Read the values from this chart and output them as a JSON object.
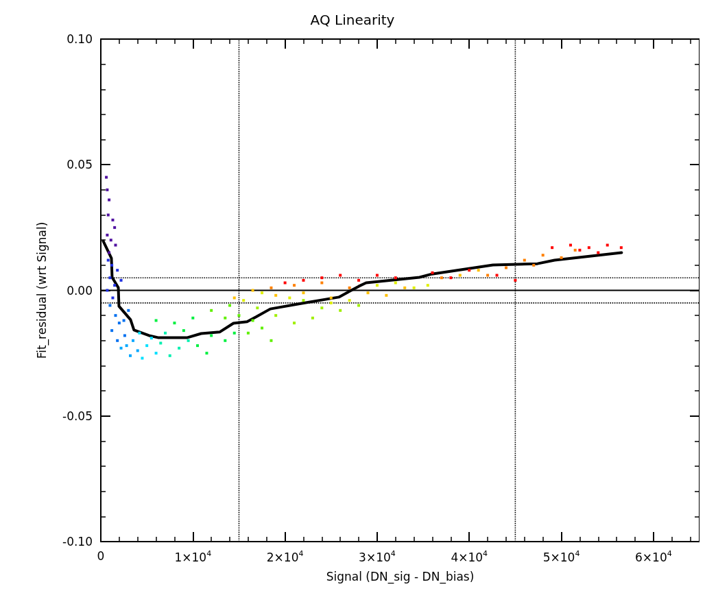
{
  "chart_data": {
    "type": "scatter",
    "title": "AQ Linearity",
    "xlabel": "Signal (DN_sig - DN_bias)",
    "ylabel": "Fit_residual (wrt Signal)",
    "xlim": [
      0,
      65000
    ],
    "xticks": [
      0,
      {
        "value": 10000,
        "label": "1×10$^{4}$"
      },
      {
        "value": 20000,
        "label": "2×10$^{4}$"
      },
      {
        "value": 30000,
        "label": "3×10$^{4}$"
      },
      {
        "value": 40000,
        "label": "4×10$^{4}$"
      },
      {
        "value": 50000,
        "label": "5×10$^{4}$"
      },
      {
        "value": 60000,
        "label": "6×10$^{4}$"
      }
    ],
    "ylim": [
      -0.1,
      0.1
    ],
    "yticks": [
      {
        "value": -0.1,
        "label": "-0.10"
      },
      {
        "value": -0.05,
        "label": "-0.05"
      },
      {
        "value": 0,
        "label": "0.00"
      },
      {
        "value": 0.05,
        "label": "0.05"
      },
      {
        "value": 0.1,
        "label": "0.10"
      }
    ],
    "grid": false,
    "marker": "square",
    "ref_lines": [
      {
        "axis": "y",
        "value": 0,
        "color": "#000000",
        "line_style": "solid"
      },
      {
        "axis": "y",
        "value": 0.005,
        "color": "#000000",
        "line_style": "dotted"
      },
      {
        "axis": "y",
        "value": -0.005,
        "color": "#000000",
        "line_style": "dotted"
      },
      {
        "axis": "x",
        "value": 15000,
        "color": "#000000",
        "line_style": "dotted"
      },
      {
        "axis": "x",
        "value": 45000,
        "color": "#000000",
        "line_style": "dotted"
      }
    ],
    "series": [
      {
        "type": "scatter",
        "color": "#5010a0",
        "x": [
          600,
          700,
          900,
          800,
          1300,
          1500,
          700,
          1100,
          1600,
          900
        ],
        "values": [
          0.045,
          0.04,
          0.036,
          0.03,
          0.028,
          0.025,
          0.022,
          0.02,
          0.018,
          0.015
        ]
      },
      {
        "type": "scatter",
        "color": "#2030e0",
        "x": [
          800,
          1200,
          1800,
          1000,
          2200,
          1500,
          700,
          1300
        ],
        "values": [
          0.012,
          0.01,
          0.008,
          0.005,
          0.004,
          0.002,
          0.0,
          -0.003
        ]
      },
      {
        "type": "scatter",
        "color": "#0070f0",
        "x": [
          1000,
          1600,
          2000,
          1200,
          2500,
          3000,
          1800,
          2600
        ],
        "values": [
          -0.006,
          -0.01,
          -0.013,
          -0.016,
          -0.012,
          -0.008,
          -0.02,
          -0.018
        ]
      },
      {
        "type": "scatter",
        "color": "#00a8ff",
        "x": [
          2800,
          3500,
          3200,
          4000,
          2200
        ],
        "values": [
          -0.022,
          -0.02,
          -0.026,
          -0.024,
          -0.023
        ]
      },
      {
        "type": "scatter",
        "color": "#00e0ff",
        "x": [
          4500,
          5000,
          6000,
          5500,
          4200
        ],
        "values": [
          -0.027,
          -0.022,
          -0.025,
          -0.019,
          -0.017
        ]
      },
      {
        "type": "scatter",
        "color": "#00f0b0",
        "x": [
          6500,
          7500,
          7000,
          8500,
          9500
        ],
        "values": [
          -0.021,
          -0.026,
          -0.017,
          -0.023,
          -0.02
        ]
      },
      {
        "type": "scatter",
        "color": "#00f040",
        "x": [
          6000,
          8000,
          9000,
          10500,
          11500,
          12000,
          10000,
          13500,
          14500
        ],
        "values": [
          -0.012,
          -0.013,
          -0.016,
          -0.022,
          -0.025,
          -0.018,
          -0.011,
          -0.02,
          -0.017
        ]
      },
      {
        "type": "scatter",
        "color": "#60f000",
        "x": [
          12000,
          13500,
          15000,
          16500,
          17500,
          18500,
          16000,
          14000
        ],
        "values": [
          -0.008,
          -0.011,
          -0.01,
          -0.012,
          -0.015,
          -0.02,
          -0.017,
          -0.006
        ]
      },
      {
        "type": "scatter",
        "color": "#a0f000",
        "x": [
          17000,
          19000,
          21000,
          23000,
          24000,
          26000,
          28000,
          22000
        ],
        "values": [
          -0.007,
          -0.01,
          -0.013,
          -0.011,
          -0.007,
          -0.008,
          -0.006,
          -0.004
        ]
      },
      {
        "type": "scatter",
        "color": "#e0f000",
        "x": [
          15500,
          17500,
          25000,
          27000,
          30000,
          32000,
          34000,
          35500,
          20500
        ],
        "values": [
          -0.004,
          -0.001,
          -0.005,
          -0.004,
          0.002,
          0.003,
          0.001,
          0.002,
          -0.003
        ]
      },
      {
        "type": "scatter",
        "color": "#ffc000",
        "x": [
          14500,
          16500,
          19000,
          22000,
          25000,
          29000,
          31000,
          33000,
          39000,
          41000
        ],
        "values": [
          -0.003,
          0.0,
          -0.002,
          -0.001,
          -0.003,
          -0.001,
          -0.002,
          0.001,
          0.006,
          0.008
        ]
      },
      {
        "type": "scatter",
        "color": "#ff8000",
        "x": [
          18500,
          21000,
          24000,
          27000,
          37000,
          42000,
          44000,
          46000,
          48000,
          50000,
          51500,
          47000
        ],
        "values": [
          0.001,
          0.002,
          0.003,
          0.001,
          0.005,
          0.006,
          0.009,
          0.012,
          0.014,
          0.013,
          0.016,
          0.01
        ]
      },
      {
        "type": "scatter",
        "color": "#ff0000",
        "x": [
          20000,
          22000,
          24000,
          26000,
          28000,
          30000,
          32000,
          36000,
          38000,
          40000,
          43000,
          49000,
          51000,
          53000,
          55000,
          56500,
          54000,
          52000,
          45000
        ],
        "values": [
          0.003,
          0.004,
          0.005,
          0.006,
          0.004,
          0.006,
          0.005,
          0.007,
          0.005,
          0.008,
          0.006,
          0.017,
          0.018,
          0.017,
          0.018,
          0.017,
          0.015,
          0.016,
          0.004
        ]
      },
      {
        "type": "line",
        "color": "#000000",
        "marker": "none",
        "line_style": "solid",
        "x": [
          260,
          1152,
          1227,
          1900,
          1970,
          3230,
          3600,
          5240,
          6210,
          9410,
          10900,
          12900,
          14400,
          15880,
          16850,
          18400,
          21820,
          25840,
          28000,
          28800,
          34600,
          35950,
          42570,
          47400,
          49260,
          56540
        ],
        "values": [
          0.0196,
          0.0128,
          0.0052,
          0.0011,
          -0.0063,
          -0.0117,
          -0.0158,
          -0.018,
          -0.0188,
          -0.0188,
          -0.0172,
          -0.0166,
          -0.0131,
          -0.0125,
          -0.0106,
          -0.0074,
          -0.0052,
          -0.0027,
          0.0016,
          0.003,
          0.0052,
          0.0065,
          0.0101,
          0.0106,
          0.012,
          0.015
        ]
      }
    ]
  }
}
